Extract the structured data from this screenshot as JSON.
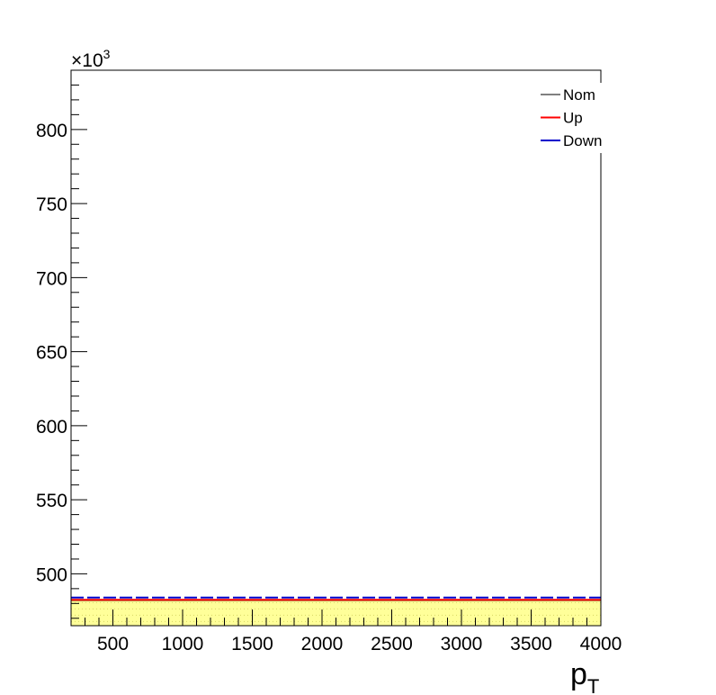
{
  "chart_data": {
    "type": "line",
    "title": "",
    "xlabel": "p",
    "xlabel_subscript": "T",
    "ylabel": "",
    "y_multiplier_label": "×10",
    "y_multiplier_exponent": "3",
    "xlim": [
      200,
      4000
    ],
    "ylim": [
      465,
      840
    ],
    "x_ticks": [
      500,
      1000,
      1500,
      2000,
      2500,
      3000,
      3500,
      4000
    ],
    "y_ticks": [
      500,
      550,
      600,
      650,
      700,
      750,
      800
    ],
    "grid": false,
    "legend_position": "top-right",
    "band": {
      "low": 465,
      "high": 483,
      "color": "#ffff99"
    },
    "series": [
      {
        "name": "Nom",
        "color": "#000000",
        "values": [
          482,
          482
        ]
      },
      {
        "name": "Up",
        "color": "#ff0000",
        "values": [
          482.5,
          482.5
        ]
      },
      {
        "name": "Down",
        "color": "#0000cc",
        "values": [
          484,
          484
        ]
      }
    ],
    "x": [
      200,
      4000
    ]
  }
}
